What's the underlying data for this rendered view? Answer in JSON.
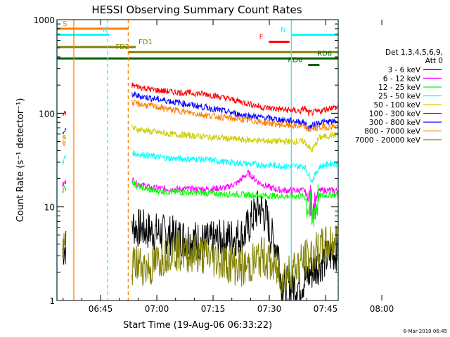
{
  "chart_data": {
    "type": "line",
    "title": "HESSI Observing Summary Count Rates",
    "xlabel": "Start Time (19-Aug-06 06:33:22)",
    "ylabel": "Count Rate (s⁻¹ detector⁻¹)",
    "yscale": "log",
    "ylim": [
      1,
      1000
    ],
    "xlim_minutes_after_0633": [
      0,
      75
    ],
    "x_ticks": [
      "06:45",
      "07:00",
      "07:15",
      "07:30",
      "07:45",
      "08:00"
    ],
    "y_ticks": [
      "1",
      "10",
      "100",
      "1000"
    ],
    "legend_title": "Det 1,3,4,5,6,9, Att 0",
    "legend_title_lines": [
      "Det 1,3,4,5,6,9,",
      "Att 0"
    ],
    "legend_placement": "right",
    "series": [
      {
        "name": "3 - 6 keV",
        "color": "#000000",
        "x": [
          1.5,
          2.5,
          20,
          21,
          25,
          30,
          40,
          50,
          52,
          54,
          56,
          57,
          59,
          60,
          65,
          70,
          75
        ],
        "y": [
          3.5,
          3.8,
          6.5,
          6.0,
          5.5,
          5.0,
          4.2,
          5.0,
          7.5,
          10.0,
          7.5,
          5.0,
          3.5,
          1.4,
          1.5,
          2.5,
          3.5
        ]
      },
      {
        "name": "6 - 12 keV",
        "color": "#ff00ff",
        "x": [
          1.5,
          2.5,
          20,
          21,
          25,
          30,
          40,
          45,
          48,
          51,
          54,
          57,
          60,
          63,
          66,
          68,
          70,
          73,
          75
        ],
        "y": [
          17,
          19,
          20,
          18,
          16,
          15.5,
          15.5,
          16,
          18,
          23,
          18,
          16,
          15,
          15,
          15,
          10,
          15,
          15,
          15
        ]
      },
      {
        "name": "12 - 25 keV",
        "color": "#00ff00",
        "x": [
          1.5,
          2.5,
          20,
          21,
          25,
          30,
          40,
          50,
          60,
          66,
          68,
          70,
          73,
          75
        ],
        "y": [
          15,
          16,
          19,
          17,
          15,
          14.5,
          14,
          13.5,
          13,
          13,
          8,
          13,
          13.5,
          13.5
        ]
      },
      {
        "name": "25 - 50 keV",
        "color": "#00ffff",
        "x": [
          1.5,
          2.5,
          20,
          21,
          25,
          30,
          40,
          45,
          50,
          55,
          60,
          66,
          68,
          70,
          73,
          75
        ],
        "y": [
          30,
          35,
          38,
          37,
          35,
          33,
          32,
          30,
          29,
          28,
          27.5,
          27,
          19,
          27,
          29,
          29
        ]
      },
      {
        "name": "50 - 100 keV",
        "color": "#cccc00",
        "x": [
          1.5,
          2.5,
          20,
          21,
          25,
          30,
          40,
          50,
          60,
          66,
          68,
          70,
          73,
          75
        ],
        "y": [
          55,
          58,
          70,
          68,
          64,
          60,
          56,
          52,
          50,
          50,
          40,
          55,
          58,
          60
        ]
      },
      {
        "name": "100 - 300 keV",
        "color": "#ff0000",
        "x": [
          1.5,
          2.5,
          20,
          21,
          25,
          30,
          35,
          40,
          45,
          50,
          55,
          60,
          65,
          66,
          67,
          70,
          73,
          75
        ],
        "y": [
          95,
          100,
          200,
          195,
          180,
          170,
          165,
          160,
          145,
          130,
          115,
          110,
          105,
          115,
          100,
          105,
          115,
          115
        ]
      },
      {
        "name": "300 - 800 keV",
        "color": "#0000ff",
        "x": [
          1.5,
          2.5,
          20,
          21,
          25,
          30,
          40,
          50,
          60,
          66,
          67,
          70,
          75
        ],
        "y": [
          62,
          65,
          160,
          155,
          145,
          135,
          115,
          95,
          85,
          80,
          70,
          80,
          82
        ]
      },
      {
        "name": "800 - 7000 keV",
        "color": "#ff8000",
        "x": [
          1.5,
          2.5,
          20,
          21,
          25,
          30,
          40,
          50,
          60,
          66,
          67,
          70,
          75
        ],
        "y": [
          48,
          50,
          130,
          127,
          120,
          110,
          95,
          85,
          75,
          72,
          66,
          70,
          73
        ]
      },
      {
        "name": "7000 - 20000 keV",
        "color": "#808000",
        "x": [
          1.5,
          2.5,
          20,
          21,
          25,
          30,
          40,
          50,
          55,
          60,
          65,
          70,
          75
        ],
        "y": [
          3.0,
          3.5,
          2.2,
          2.5,
          2.2,
          3.5,
          3.0,
          2.2,
          3.0,
          1.8,
          2.5,
          3.5,
          4.5
        ]
      }
    ],
    "flags": [
      {
        "label": "S",
        "color": "#ff8000",
        "x": [
          0,
          19
        ],
        "y": 800
      },
      {
        "label": "N",
        "color": "#00ffff",
        "x": [
          0,
          14
        ],
        "y": 690
      },
      {
        "label": "FD1",
        "color": "#808000",
        "x": [
          0,
          21
        ],
        "y": 510
      },
      {
        "label": "FD2",
        "color": "#808000",
        "x": [
          19,
          75
        ],
        "y": 450
      },
      {
        "label": "RD6",
        "color": "#006400",
        "x": [
          0,
          75
        ],
        "y": 385
      },
      {
        "label": "F",
        "color": "#ff0000",
        "x": [
          56.5,
          62
        ],
        "y": 580
      },
      {
        "label": "N",
        "color": "#00ffff",
        "x": [
          62.5,
          75
        ],
        "y": 690
      },
      {
        "label": "RD6",
        "color": "#006400",
        "x": [
          67,
          70
        ],
        "y": 328
      }
    ],
    "vertical_lines": [
      {
        "x": 0,
        "color": "#00ffff",
        "style": "solid"
      },
      {
        "x": 4.5,
        "color": "#ff8000",
        "style": "solid"
      },
      {
        "x": 13.5,
        "color": "#00ffff",
        "style": "dashed"
      },
      {
        "x": 19,
        "color": "#ff8000",
        "style": "dashed"
      },
      {
        "x": 62.5,
        "color": "#00ffff",
        "style": "solid"
      },
      {
        "x": 75,
        "color": "#00ffff",
        "style": "dashed"
      }
    ]
  },
  "footer": {
    "date": "6-Mar-2010 06:45"
  }
}
